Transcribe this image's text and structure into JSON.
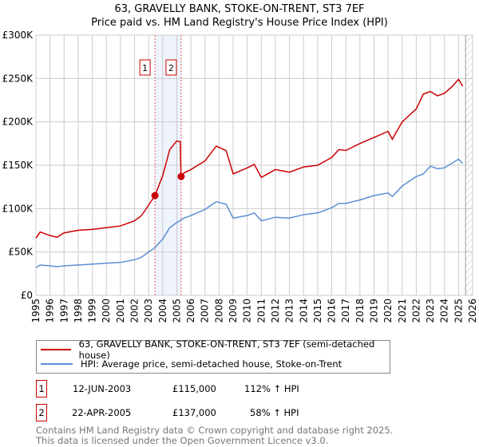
{
  "title": "63, GRAVELLY BANK, STOKE-ON-TRENT, ST3 7EF",
  "subtitle": "Price paid vs. HM Land Registry's House Price Index (HPI)",
  "chart_data": {
    "type": "line",
    "xlim": [
      1995,
      2026
    ],
    "ylim": [
      0,
      300000
    ],
    "yticks": [
      0,
      50000,
      100000,
      150000,
      200000,
      250000,
      300000
    ],
    "ytick_labels": [
      "£0",
      "£50K",
      "£100K",
      "£150K",
      "£200K",
      "£250K",
      "£300K"
    ],
    "xticks": [
      "1995",
      "1996",
      "1997",
      "1998",
      "1999",
      "2000",
      "2001",
      "2002",
      "2003",
      "2004",
      "2005",
      "2006",
      "2007",
      "2008",
      "2009",
      "2010",
      "2011",
      "2012",
      "2013",
      "2014",
      "2015",
      "2016",
      "2017",
      "2018",
      "2019",
      "2020",
      "2021",
      "2022",
      "2023",
      "2024",
      "2025",
      "2026"
    ],
    "grid": true,
    "forecast_hatch_from": 2025.5,
    "shaded_range": [
      2003.45,
      2005.31
    ],
    "series": [
      {
        "name": "63, GRAVELLY BANK, STOKE-ON-TRENT, ST3 7EF (semi-detached house)",
        "color": "#cc0000",
        "x": [
          1995,
          1995.3,
          1996,
          1996.5,
          1997,
          1998,
          1999,
          2000,
          2001,
          2002,
          2002.5,
          2003,
          2003.45,
          2004,
          2004.5,
          2005,
          2005.25,
          2005.3,
          2005.5,
          2006,
          2007,
          2007.8,
          2008.5,
          2009,
          2010,
          2010.5,
          2011,
          2012,
          2013,
          2014,
          2015,
          2016,
          2016.5,
          2017,
          2018,
          2019,
          2020,
          2020.3,
          2021,
          2022,
          2022.5,
          2023,
          2023.5,
          2024,
          2024.5,
          2025,
          2025.3
        ],
        "y": [
          66000,
          73000,
          69000,
          67000,
          72000,
          75000,
          76000,
          78000,
          80000,
          86000,
          92000,
          104000,
          115000,
          138000,
          168000,
          178000,
          177000,
          137000,
          141000,
          145000,
          155000,
          172000,
          167000,
          140000,
          147000,
          151000,
          136000,
          145000,
          142000,
          148000,
          150000,
          159000,
          168000,
          167000,
          175000,
          182000,
          189000,
          180000,
          200000,
          215000,
          232000,
          235000,
          230000,
          233000,
          240000,
          249000,
          241000
        ]
      },
      {
        "name": "HPI: Average price, semi-detached house, Stoke-on-Trent",
        "color": "#5b8fd4",
        "x": [
          1995,
          1995.3,
          1996,
          1996.5,
          1997,
          1998,
          1999,
          2000,
          2001,
          2002,
          2002.5,
          2003,
          2003.45,
          2004,
          2004.5,
          2005,
          2005.3,
          2005.5,
          2006,
          2007,
          2007.8,
          2008.5,
          2009,
          2010,
          2010.5,
          2011,
          2012,
          2013,
          2014,
          2015,
          2016,
          2016.5,
          2017,
          2018,
          2019,
          2020,
          2020.3,
          2021,
          2022,
          2022.5,
          2023,
          2023.5,
          2024,
          2024.5,
          2025,
          2025.3
        ],
        "y": [
          32000,
          35000,
          34000,
          33000,
          34000,
          35000,
          36000,
          37000,
          38000,
          41000,
          44000,
          50000,
          55000,
          65000,
          78000,
          84000,
          87000,
          89000,
          92000,
          99000,
          108000,
          105000,
          89000,
          92000,
          95000,
          86000,
          90000,
          89000,
          93000,
          95000,
          101000,
          106000,
          106000,
          110000,
          115000,
          118000,
          114000,
          126000,
          137000,
          140000,
          149000,
          146000,
          147000,
          152000,
          157000,
          152000
        ]
      }
    ],
    "annotations": [
      {
        "label": "1",
        "x": 2003.45,
        "y": 115000
      },
      {
        "label": "2",
        "x": 2005.31,
        "y": 137000
      }
    ]
  },
  "legend": {
    "red": "63, GRAVELLY BANK, STOKE-ON-TRENT, ST3 7EF (semi-detached house)",
    "blue": "HPI: Average price, semi-detached house, Stoke-on-Trent"
  },
  "sales": [
    {
      "num": "1",
      "date": "12-JUN-2003",
      "price": "£115,000",
      "hpi": "112% ↑ HPI"
    },
    {
      "num": "2",
      "date": "22-APR-2005",
      "price": "£137,000",
      "hpi": "58% ↑ HPI"
    }
  ],
  "footer": {
    "line1": "Contains HM Land Registry data © Crown copyright and database right 2025.",
    "line2": "This data is licensed under the Open Government Licence v3.0."
  }
}
